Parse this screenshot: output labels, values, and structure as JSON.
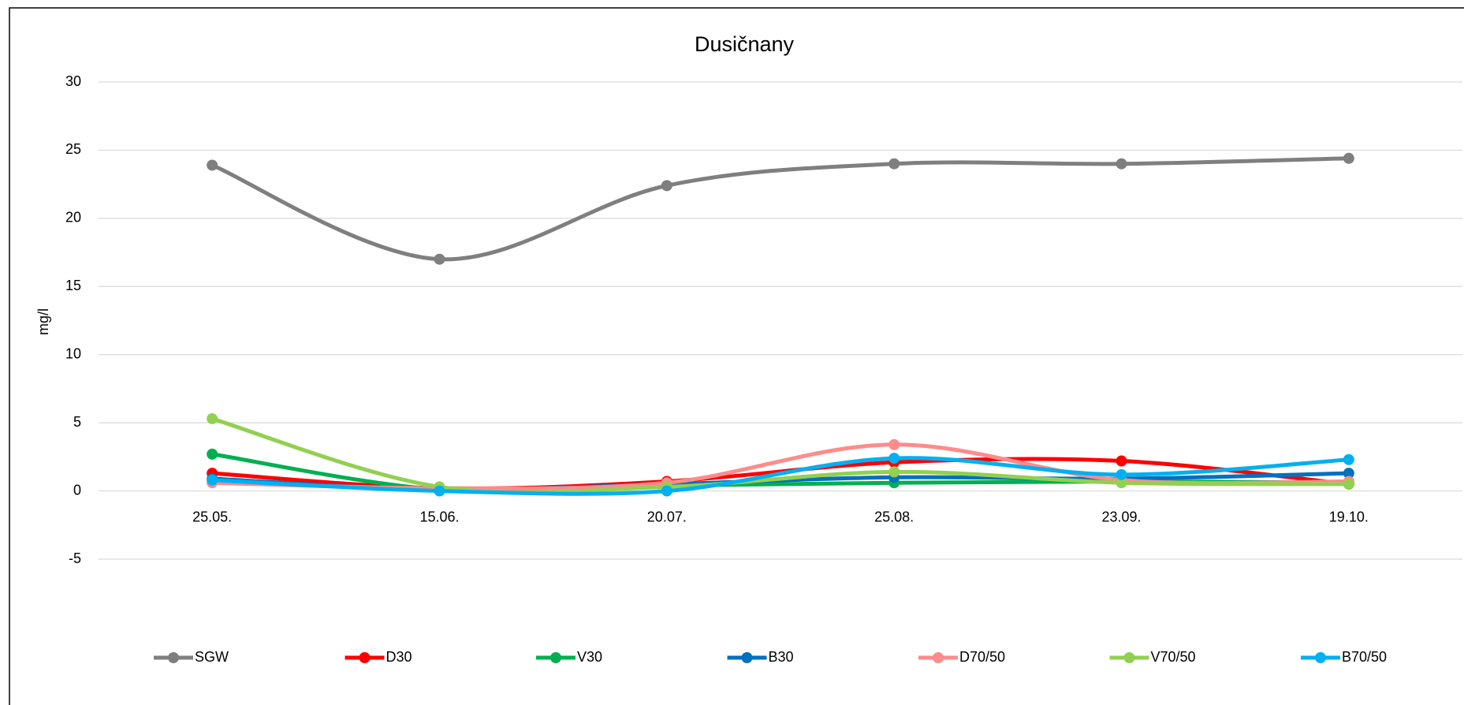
{
  "chart_data": {
    "type": "line",
    "title": "Dusičnany",
    "y_label": "mg/l",
    "categories": [
      "25.05.",
      "15.06.",
      "20.07.",
      "25.08.",
      "23.09.",
      "19.10."
    ],
    "series": [
      {
        "name": "SGW",
        "color": "#7f7f7f",
        "values": [
          23.9,
          17.0,
          22.4,
          24.0,
          24.0,
          24.4
        ]
      },
      {
        "name": "D30",
        "color": "#ff0000",
        "values": [
          1.3,
          0.2,
          0.7,
          2.1,
          2.2,
          0.5
        ]
      },
      {
        "name": "V30",
        "color": "#00b050",
        "values": [
          2.7,
          0.1,
          0.4,
          0.6,
          0.7,
          0.6
        ]
      },
      {
        "name": "B30",
        "color": "#0070c0",
        "values": [
          0.9,
          0.1,
          0.5,
          1.0,
          0.9,
          1.3
        ]
      },
      {
        "name": "D70/50",
        "color": "#ff8b8b",
        "values": [
          0.6,
          0.2,
          0.6,
          3.4,
          0.8,
          0.7
        ]
      },
      {
        "name": "V70/50",
        "color": "#92d050",
        "values": [
          5.3,
          0.3,
          0.3,
          1.4,
          0.6,
          0.5
        ]
      },
      {
        "name": "B70/50",
        "color": "#00b0f0",
        "values": [
          0.8,
          0.0,
          0.0,
          2.4,
          1.2,
          2.3
        ]
      }
    ],
    "ylim": [
      -5,
      30
    ],
    "yticks": [
      -5,
      0,
      5,
      10,
      15,
      20,
      25,
      30
    ],
    "grid": true,
    "smooth": true,
    "legend": "bottom"
  }
}
